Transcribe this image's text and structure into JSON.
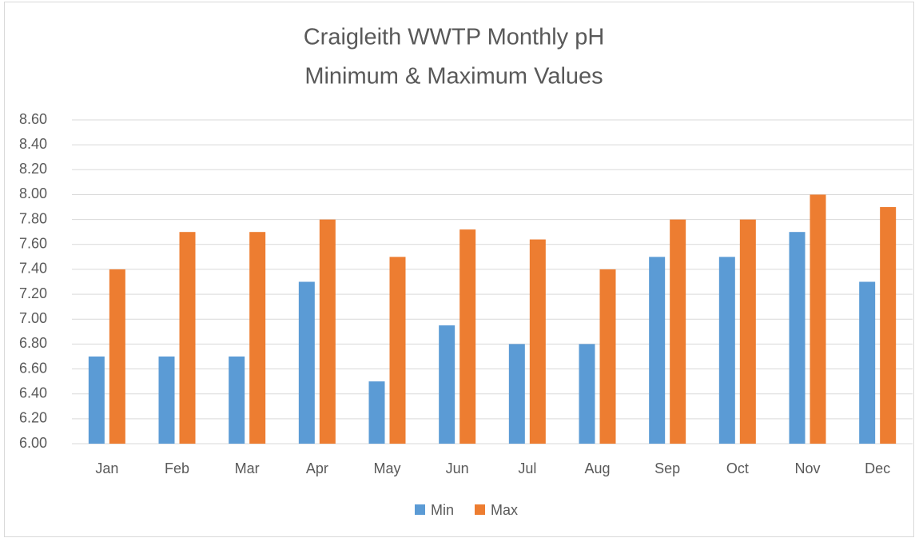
{
  "chart_data": {
    "type": "bar",
    "title": "Craigleith WWTP Monthly pH",
    "subtitle": "Minimum & Maximum Values",
    "categories": [
      "Jan",
      "Feb",
      "Mar",
      "Apr",
      "May",
      "Jun",
      "Jul",
      "Aug",
      "Sep",
      "Oct",
      "Nov",
      "Dec"
    ],
    "series": [
      {
        "name": "Min",
        "color": "#5b9bd5",
        "values": [
          6.7,
          6.7,
          6.7,
          7.3,
          6.5,
          6.95,
          6.8,
          6.8,
          7.5,
          7.5,
          7.7,
          7.3
        ]
      },
      {
        "name": "Max",
        "color": "#ed7d31",
        "values": [
          7.4,
          7.7,
          7.7,
          7.8,
          7.5,
          7.72,
          7.64,
          7.4,
          7.8,
          7.8,
          8.0,
          7.9
        ]
      }
    ],
    "ylim": [
      6,
      8.6
    ],
    "yticks": [
      {
        "value": 6,
        "label": "6.00"
      },
      {
        "value": 6.2,
        "label": "6.20"
      },
      {
        "value": 6.4,
        "label": "6.40"
      },
      {
        "value": 6.6,
        "label": "6.60"
      },
      {
        "value": 6.8,
        "label": "6.80"
      },
      {
        "value": 7,
        "label": "7.00"
      },
      {
        "value": 7.2,
        "label": "7.20"
      },
      {
        "value": 7.4,
        "label": "7.40"
      },
      {
        "value": 7.6,
        "label": "7.60"
      },
      {
        "value": 7.8,
        "label": "7.80"
      },
      {
        "value": 8,
        "label": "8.00"
      },
      {
        "value": 8.2,
        "label": "8.20"
      },
      {
        "value": 8.4,
        "label": "8.40"
      },
      {
        "value": 8.6,
        "label": "8.60"
      }
    ],
    "grid": true,
    "legend": "bottom"
  }
}
